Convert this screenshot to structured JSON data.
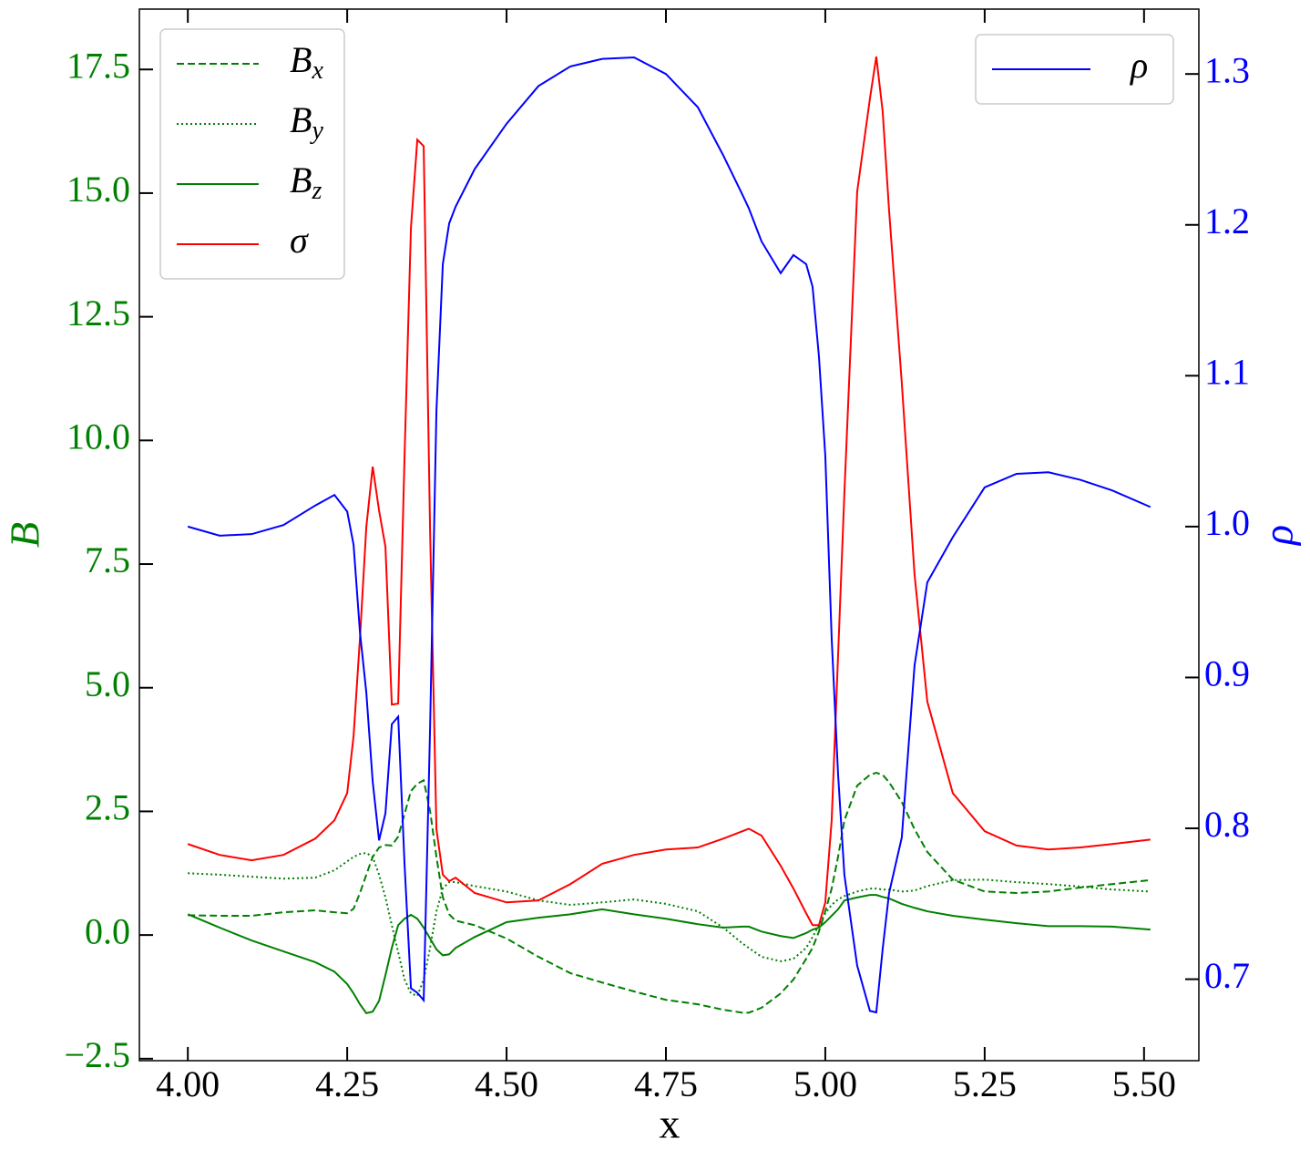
{
  "chart_data": {
    "type": "line",
    "x_label": "x",
    "y_label": "B",
    "y2_label": "ρ",
    "y_color": "#008000",
    "y2_color": "#0000ff",
    "xlim": [
      3.924,
      5.586
    ],
    "ylim": [
      -2.54,
      18.72
    ],
    "y2lim": [
      0.646,
      1.343
    ],
    "xticks": [
      {
        "value": 4.0,
        "label": "4.00"
      },
      {
        "value": 4.25,
        "label": "4.25"
      },
      {
        "value": 4.5,
        "label": "4.50"
      },
      {
        "value": 4.75,
        "label": "4.75"
      },
      {
        "value": 5.0,
        "label": "5.00"
      },
      {
        "value": 5.25,
        "label": "5.25"
      },
      {
        "value": 5.5,
        "label": "5.50"
      }
    ],
    "yticks": [
      {
        "value": -2.5,
        "label": "−2.5"
      },
      {
        "value": 0,
        "label": "0.0"
      },
      2.5,
      {
        "value": 5,
        "label": "5.0"
      },
      7.5,
      {
        "value": 10,
        "label": "10.0"
      },
      12.5,
      {
        "value": 15,
        "label": "15.0"
      },
      17.5
    ],
    "y2ticks": [
      0.7,
      0.8,
      0.9,
      {
        "value": 1.0,
        "label": "1.0"
      },
      1.1,
      1.2,
      1.3
    ],
    "legend": {
      "y": "upper left",
      "y2": "upper right"
    },
    "x": [
      4.0,
      4.05,
      4.1,
      4.15,
      4.2,
      4.23,
      4.25,
      4.26,
      4.27,
      4.28,
      4.29,
      4.3,
      4.31,
      4.32,
      4.33,
      4.34,
      4.35,
      4.36,
      4.37,
      4.38,
      4.39,
      4.4,
      4.41,
      4.42,
      4.45,
      4.5,
      4.55,
      4.6,
      4.65,
      4.7,
      4.75,
      4.8,
      4.84,
      4.87,
      4.88,
      4.9,
      4.93,
      4.95,
      4.97,
      4.98,
      4.99,
      5.0,
      5.01,
      5.02,
      5.03,
      5.05,
      5.07,
      5.08,
      5.09,
      5.1,
      5.12,
      5.14,
      5.16,
      5.2,
      5.25,
      5.3,
      5.35,
      5.4,
      5.45,
      5.51
    ],
    "series": [
      {
        "name": "Bx",
        "color": "#008000",
        "linestyle": "dashed",
        "axis": "y",
        "values": [
          0.4,
          0.39,
          0.39,
          0.46,
          0.5,
          0.46,
          0.44,
          0.53,
          0.85,
          1.22,
          1.58,
          1.77,
          1.82,
          1.81,
          1.99,
          2.45,
          2.91,
          3.06,
          3.13,
          2.51,
          1.58,
          0.76,
          0.42,
          0.29,
          0.2,
          -0.07,
          -0.44,
          -0.77,
          -0.96,
          -1.14,
          -1.31,
          -1.4,
          -1.51,
          -1.57,
          -1.57,
          -1.47,
          -1.18,
          -0.9,
          -0.48,
          -0.26,
          0.07,
          0.48,
          0.94,
          1.58,
          2.32,
          3.02,
          3.24,
          3.28,
          3.24,
          3.09,
          2.69,
          2.14,
          1.68,
          1.12,
          0.88,
          0.85,
          0.88,
          0.96,
          1.03,
          1.11
        ]
      },
      {
        "name": "By",
        "color": "#008000",
        "linestyle": "dotted",
        "axis": "y",
        "values": [
          1.25,
          1.22,
          1.18,
          1.14,
          1.16,
          1.31,
          1.49,
          1.58,
          1.64,
          1.66,
          1.58,
          1.22,
          0.76,
          0.2,
          -0.35,
          -0.9,
          -1.18,
          -1.23,
          -0.9,
          -0.26,
          0.48,
          0.94,
          1.07,
          1.07,
          0.99,
          0.88,
          0.7,
          0.61,
          0.66,
          0.72,
          0.63,
          0.48,
          0.15,
          -0.17,
          -0.26,
          -0.44,
          -0.53,
          -0.48,
          -0.26,
          -0.04,
          0.2,
          0.44,
          0.61,
          0.72,
          0.79,
          0.88,
          0.94,
          0.94,
          0.92,
          0.92,
          0.88,
          0.9,
          0.99,
          1.11,
          1.12,
          1.07,
          1.03,
          0.98,
          0.92,
          0.88
        ]
      },
      {
        "name": "Bz",
        "color": "#008000",
        "linestyle": "solid",
        "axis": "y",
        "values": [
          0.42,
          0.15,
          -0.11,
          -0.33,
          -0.55,
          -0.74,
          -0.99,
          -1.18,
          -1.4,
          -1.58,
          -1.55,
          -1.33,
          -0.81,
          -0.26,
          0.2,
          0.33,
          0.41,
          0.33,
          0.15,
          -0.07,
          -0.29,
          -0.41,
          -0.39,
          -0.26,
          -0.04,
          0.26,
          0.35,
          0.42,
          0.52,
          0.42,
          0.33,
          0.22,
          0.15,
          0.17,
          0.17,
          0.07,
          -0.02,
          -0.06,
          0.04,
          0.11,
          0.15,
          0.26,
          0.39,
          0.52,
          0.7,
          0.76,
          0.81,
          0.81,
          0.77,
          0.74,
          0.63,
          0.55,
          0.48,
          0.39,
          0.31,
          0.24,
          0.18,
          0.18,
          0.17,
          0.11
        ]
      },
      {
        "name": "σ",
        "color": "#ff0000",
        "linestyle": "solid",
        "axis": "y",
        "values": [
          1.84,
          1.62,
          1.51,
          1.62,
          1.95,
          2.32,
          2.87,
          4.02,
          6.0,
          8.25,
          9.47,
          8.58,
          7.85,
          4.66,
          4.68,
          9.69,
          14.3,
          16.08,
          15.95,
          8.2,
          2.14,
          1.22,
          1.09,
          1.16,
          0.85,
          0.66,
          0.7,
          1.03,
          1.44,
          1.62,
          1.73,
          1.77,
          1.95,
          2.1,
          2.15,
          2.01,
          1.4,
          0.94,
          0.44,
          0.2,
          0.2,
          0.66,
          2.32,
          5.64,
          8.95,
          15.03,
          16.91,
          17.76,
          16.65,
          14.66,
          11.16,
          7.29,
          4.72,
          2.87,
          2.1,
          1.81,
          1.73,
          1.77,
          1.84,
          1.93
        ]
      },
      {
        "name": "ρ",
        "color": "#0000ff",
        "linestyle": "solid",
        "axis": "y2",
        "values": [
          1.0,
          0.994,
          0.995,
          1.001,
          1.014,
          1.021,
          1.01,
          0.988,
          0.93,
          0.89,
          0.831,
          0.792,
          0.81,
          0.869,
          0.874,
          0.776,
          0.694,
          0.691,
          0.686,
          0.866,
          1.077,
          1.174,
          1.201,
          1.212,
          1.237,
          1.267,
          1.292,
          1.305,
          1.31,
          1.311,
          1.3,
          1.278,
          1.246,
          1.22,
          1.211,
          1.189,
          1.168,
          1.18,
          1.174,
          1.159,
          1.113,
          1.047,
          0.926,
          0.836,
          0.769,
          0.709,
          0.679,
          0.678,
          0.72,
          0.757,
          0.794,
          0.908,
          0.963,
          0.993,
          1.026,
          1.035,
          1.036,
          1.031,
          1.024,
          1.013
        ]
      }
    ]
  }
}
